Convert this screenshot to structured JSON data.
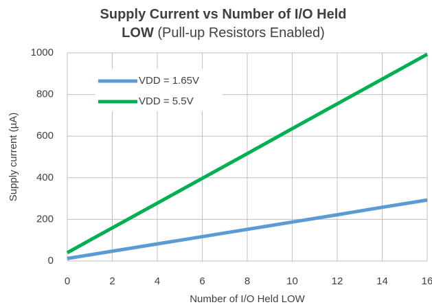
{
  "chart_data": {
    "type": "line",
    "title": "Supply Current vs Number of I/O Held LOW",
    "subtitle": "(Pull-up Resistors Enabled)",
    "x_label": "Number of I/O Held LOW",
    "y_label": "Supply current (µA)",
    "x": [
      0,
      2,
      4,
      6,
      8,
      10,
      12,
      14,
      16
    ],
    "series": [
      {
        "name": "VDD = 1.65V",
        "color": "#5b9bd5",
        "values": [
          12,
          47,
          82,
          117,
          152,
          187,
          222,
          258,
          293
        ]
      },
      {
        "name": "VDD = 5.5V",
        "color": "#00b050",
        "values": [
          40,
          159,
          278,
          397,
          516,
          636,
          755,
          874,
          993
        ]
      }
    ],
    "xlim": [
      0,
      16
    ],
    "xticks": [
      0,
      2,
      4,
      6,
      8,
      10,
      12,
      14,
      16
    ],
    "ylim": [
      0,
      1000
    ],
    "yticks": [
      0,
      200,
      400,
      600,
      800,
      1000
    ],
    "grid": true,
    "legend": "upper left"
  }
}
